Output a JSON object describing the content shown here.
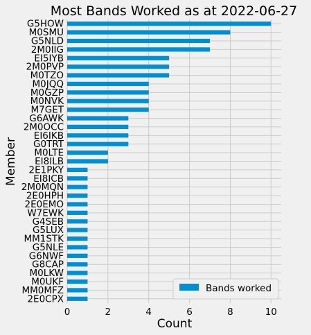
{
  "chart_data": {
    "type": "bar",
    "orientation": "horizontal",
    "title": "Most Bands Worked as at 2022-06-27",
    "xlabel": "Count",
    "ylabel": "Member",
    "xlim": [
      0,
      10.5
    ],
    "xticks": [
      "0",
      "2",
      "4",
      "6",
      "8",
      "10"
    ],
    "grid": true,
    "legend_position": "bottom-right",
    "bar_color": "#008fd5",
    "categories": [
      "G5HOW",
      "M0SMU",
      "G5NLD",
      "2M0IIG",
      "EI5IYB",
      "2M0PVP",
      "M0TZO",
      "M0JQQ",
      "M0GZP",
      "M0NVK",
      "M7GET",
      "G6AWK",
      "2M0OCC",
      "EI6IKB",
      "G0TRT",
      "M0LTE",
      "EI8ILB",
      "2E1PKY",
      "EI8ICB",
      "2M0MQN",
      "2E0HPH",
      "2E0EMO",
      "W7EWK",
      "G4SEB",
      "G5LUX",
      "MM1STK",
      "G5NLE",
      "G6NWF",
      "G8CAP",
      "M0LKW",
      "M0UKF",
      "MM0MFZ",
      "2E0CPX"
    ],
    "series": [
      {
        "name": "Bands worked",
        "values": [
          10,
          8,
          7,
          7,
          5,
          5,
          5,
          4,
          4,
          4,
          4,
          3,
          3,
          3,
          3,
          2,
          2,
          1,
          1,
          1,
          1,
          1,
          1,
          1,
          1,
          1,
          1,
          1,
          1,
          1,
          1,
          1,
          1
        ]
      }
    ]
  }
}
